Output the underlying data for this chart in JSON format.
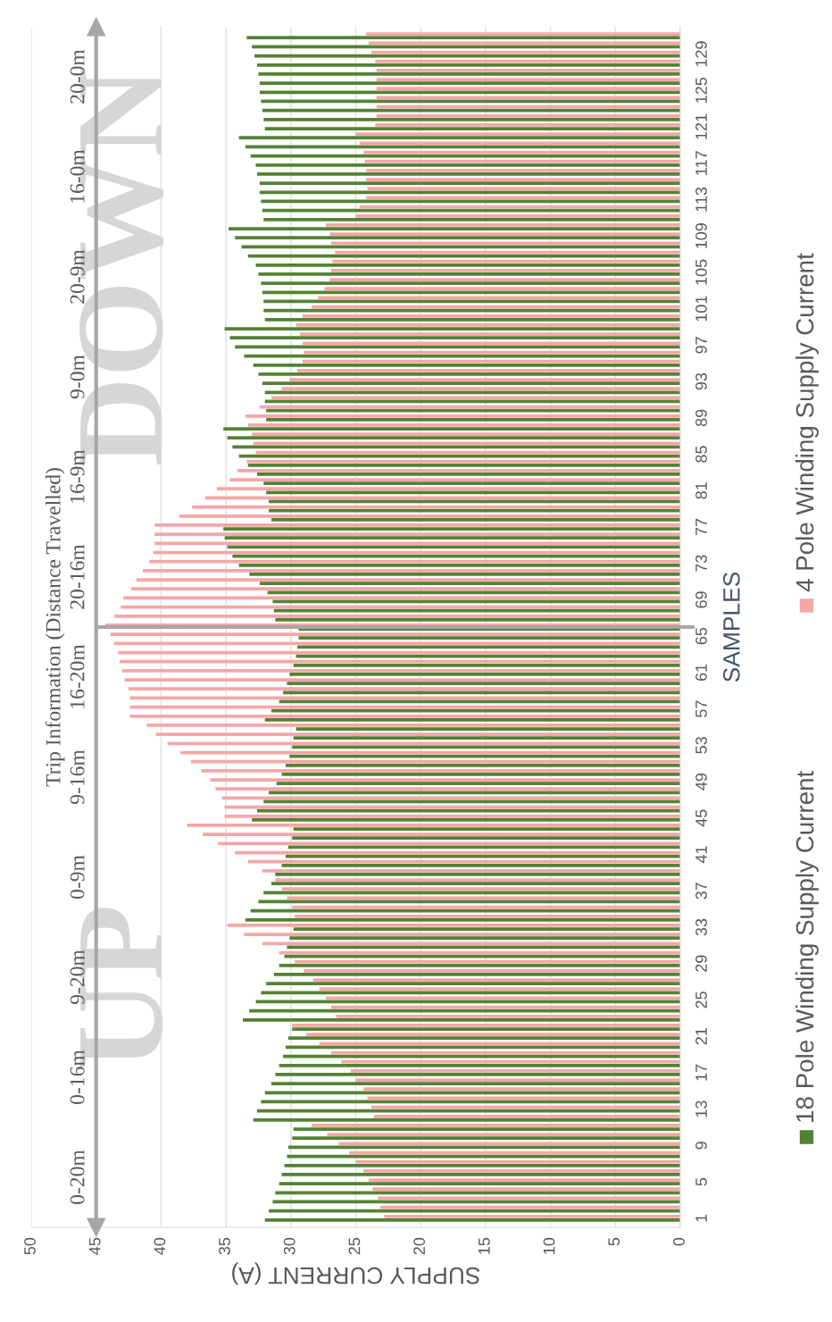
{
  "chart_data": {
    "type": "bar",
    "orientation": "horizontal",
    "xlabel": "SUPPLY CURRENT (A)",
    "ylabel": "SAMPLES",
    "x": [
      1,
      2,
      3,
      4,
      5,
      6,
      7,
      8,
      9,
      10,
      11,
      12,
      13,
      14,
      15,
      16,
      17,
      18,
      19,
      20,
      21,
      22,
      23,
      24,
      25,
      26,
      27,
      28,
      29,
      30,
      31,
      32,
      33,
      34,
      35,
      36,
      37,
      38,
      39,
      40,
      41,
      42,
      43,
      44,
      45,
      46,
      47,
      48,
      49,
      50,
      51,
      52,
      53,
      54,
      55,
      56,
      57,
      58,
      59,
      60,
      61,
      62,
      63,
      64,
      65,
      66,
      67,
      68,
      69,
      70,
      71,
      72,
      73,
      74,
      75,
      76,
      77,
      78,
      79,
      80,
      81,
      82,
      83,
      84,
      85,
      86,
      87,
      88,
      89,
      90,
      91,
      92,
      93,
      94,
      95,
      96,
      97,
      98,
      99,
      100,
      101,
      102,
      103,
      104,
      105,
      106,
      107,
      108,
      109,
      110,
      111,
      112,
      113,
      114,
      115,
      116,
      117,
      118,
      119,
      120,
      121,
      122,
      123,
      124,
      125,
      126,
      127,
      128,
      129,
      130,
      131
    ],
    "series": [
      {
        "name": "18 Pole Winding Supply Current",
        "color": "#548235",
        "values": [
          32.0,
          31.7,
          31.4,
          31.2,
          30.9,
          30.7,
          30.5,
          30.3,
          30.2,
          29.9,
          29.8,
          32.9,
          32.6,
          32.3,
          32.0,
          31.5,
          31.2,
          30.9,
          30.6,
          30.4,
          30.2,
          29.9,
          33.7,
          33.2,
          32.7,
          32.3,
          31.9,
          31.3,
          30.9,
          30.5,
          30.3,
          30.1,
          29.8,
          33.5,
          33.1,
          32.5,
          32.1,
          31.5,
          31.2,
          30.7,
          30.4,
          30.2,
          29.9,
          29.8,
          33.0,
          32.6,
          32.1,
          31.7,
          31.1,
          30.7,
          30.4,
          30.1,
          29.9,
          29.8,
          29.6,
          32.0,
          31.5,
          30.9,
          30.6,
          30.3,
          30.1,
          29.8,
          29.6,
          29.5,
          29.4,
          29.4,
          31.2,
          31.3,
          31.4,
          31.8,
          32.4,
          33.2,
          34.0,
          34.5,
          34.9,
          35.1,
          35.2,
          31.5,
          31.7,
          31.7,
          31.9,
          32.1,
          32.6,
          33.3,
          34.0,
          34.5,
          34.9,
          35.2,
          31.9,
          31.9,
          32.0,
          32.0,
          32.2,
          32.5,
          32.9,
          33.6,
          34.3,
          34.7,
          35.1,
          32.0,
          32.1,
          32.1,
          32.2,
          32.3,
          32.5,
          32.7,
          33.3,
          33.8,
          34.3,
          34.8,
          32.1,
          32.2,
          32.3,
          32.4,
          32.4,
          32.6,
          32.7,
          33.1,
          33.5,
          34.0,
          32.0,
          32.1,
          32.2,
          32.3,
          32.4,
          32.4,
          32.5,
          32.6,
          32.8,
          33.0,
          33.4
        ]
      },
      {
        "name": "4 Pole Winding Supply Current",
        "color": "#f4a7a7",
        "values": [
          22.8,
          23.1,
          23.3,
          23.7,
          24.0,
          24.4,
          25.0,
          25.5,
          26.3,
          27.2,
          28.4,
          23.6,
          23.8,
          24.1,
          24.4,
          25.0,
          25.4,
          26.1,
          26.9,
          27.8,
          28.8,
          29.9,
          26.5,
          26.9,
          27.3,
          27.8,
          28.3,
          29.0,
          29.7,
          30.9,
          32.2,
          33.6,
          34.9,
          29.7,
          29.9,
          30.3,
          30.7,
          31.2,
          32.2,
          33.3,
          34.3,
          35.6,
          36.8,
          38.0,
          35.1,
          35.1,
          35.3,
          35.8,
          36.2,
          36.9,
          37.7,
          38.5,
          39.5,
          40.4,
          41.1,
          42.4,
          42.4,
          42.4,
          42.5,
          42.8,
          43.0,
          43.2,
          43.3,
          43.6,
          43.9,
          44.3,
          43.6,
          43.1,
          42.9,
          42.3,
          41.9,
          41.4,
          40.9,
          40.6,
          40.5,
          40.5,
          40.5,
          38.6,
          37.6,
          36.6,
          35.7,
          34.7,
          34.1,
          33.4,
          32.7,
          32.9,
          33.0,
          33.3,
          33.5,
          32.4,
          31.5,
          30.7,
          30.1,
          29.5,
          29.1,
          29.0,
          29.1,
          29.3,
          29.6,
          29.1,
          28.4,
          27.9,
          27.4,
          27.0,
          26.9,
          26.8,
          26.6,
          26.9,
          27.0,
          27.3,
          25.0,
          24.7,
          24.2,
          24.1,
          24.2,
          24.2,
          24.3,
          24.4,
          24.7,
          25.0,
          23.5,
          23.4,
          23.4,
          23.4,
          23.4,
          23.4,
          23.4,
          23.5,
          23.8,
          24.0,
          24.2
        ]
      }
    ],
    "xlim": [
      50,
      0
    ],
    "xticks": [
      0,
      5,
      10,
      15,
      20,
      25,
      30,
      35,
      40,
      45,
      50
    ],
    "ylim": [
      0,
      132
    ],
    "yticks": [
      1,
      5,
      9,
      13,
      17,
      21,
      25,
      29,
      33,
      37,
      41,
      45,
      49,
      53,
      57,
      61,
      65,
      69,
      73,
      77,
      81,
      85,
      89,
      93,
      97,
      101,
      105,
      109,
      113,
      117,
      121,
      125,
      129
    ],
    "grid": "x",
    "legend": "right",
    "ref_lines": [
      {
        "axis": "x",
        "value": 45,
        "color": "#a6a6a6"
      },
      {
        "axis": "y",
        "value": 66,
        "color": "#a6a6a6"
      }
    ],
    "y2label": "Trip Information (Distance Travelled)",
    "y2_categories": [
      "20-0m",
      "16-0m",
      "20-9m",
      "9-0m",
      "16-9m",
      "20-16m",
      "16-20m",
      "9-16m",
      "0-9m",
      "9-20m",
      "0-16m",
      "0-20m"
    ],
    "annotations": [
      "UP",
      "DOWN"
    ]
  }
}
